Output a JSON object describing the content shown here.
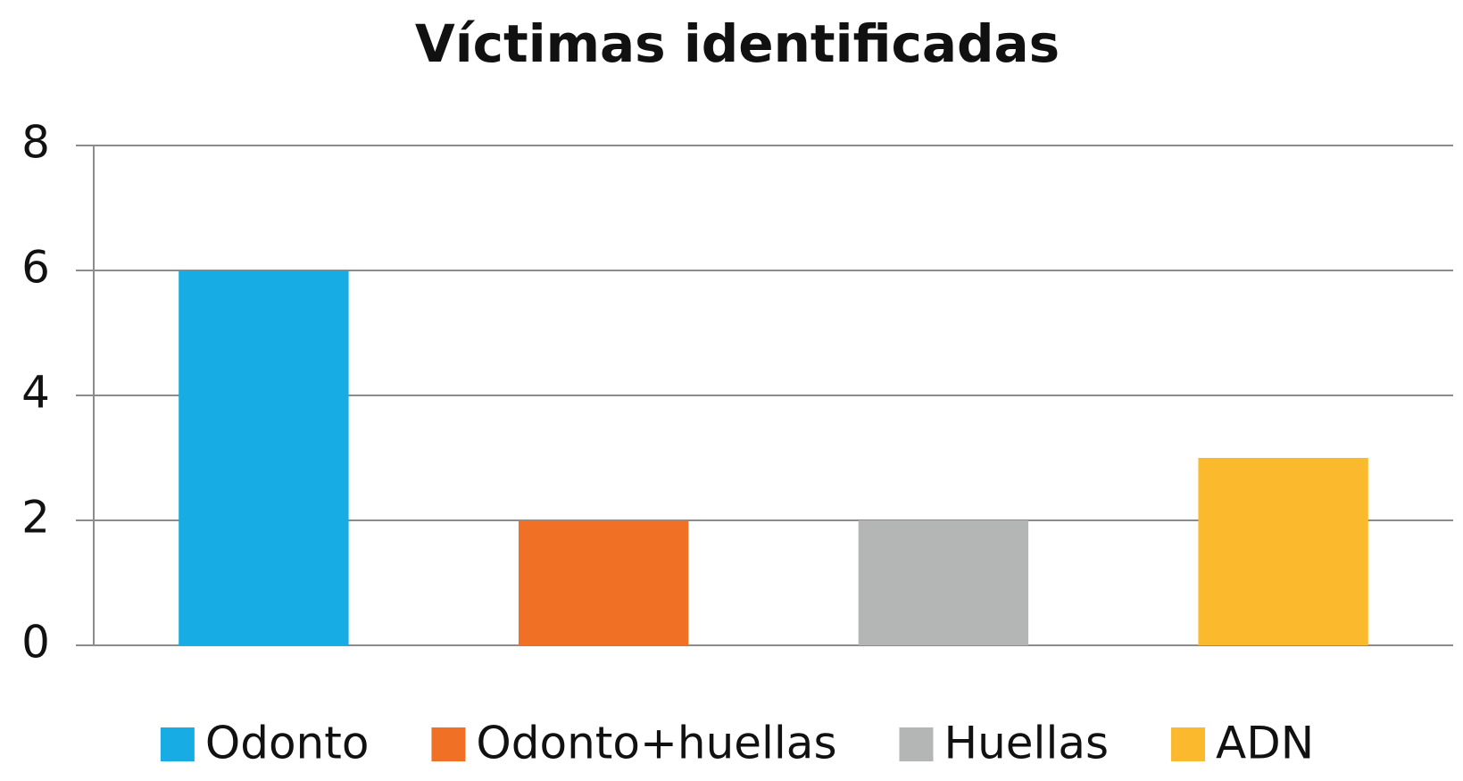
{
  "chart_data": {
    "type": "bar",
    "title": "Víctimas identificadas",
    "categories": [
      null
    ],
    "series": [
      {
        "name": "Odonto",
        "color": "#17ace3",
        "values": [
          6
        ]
      },
      {
        "name": "Odonto+huellas",
        "color": "#f07026",
        "values": [
          2
        ]
      },
      {
        "name": "Huellas",
        "color": "#b4b6b6",
        "values": [
          2
        ]
      },
      {
        "name": "ADN",
        "color": "#fbba2d",
        "values": [
          3
        ]
      }
    ],
    "ylim": [
      0,
      8
    ],
    "yticks": [
      0,
      2,
      4,
      6,
      8
    ],
    "grid": true,
    "legend": "bottom"
  }
}
